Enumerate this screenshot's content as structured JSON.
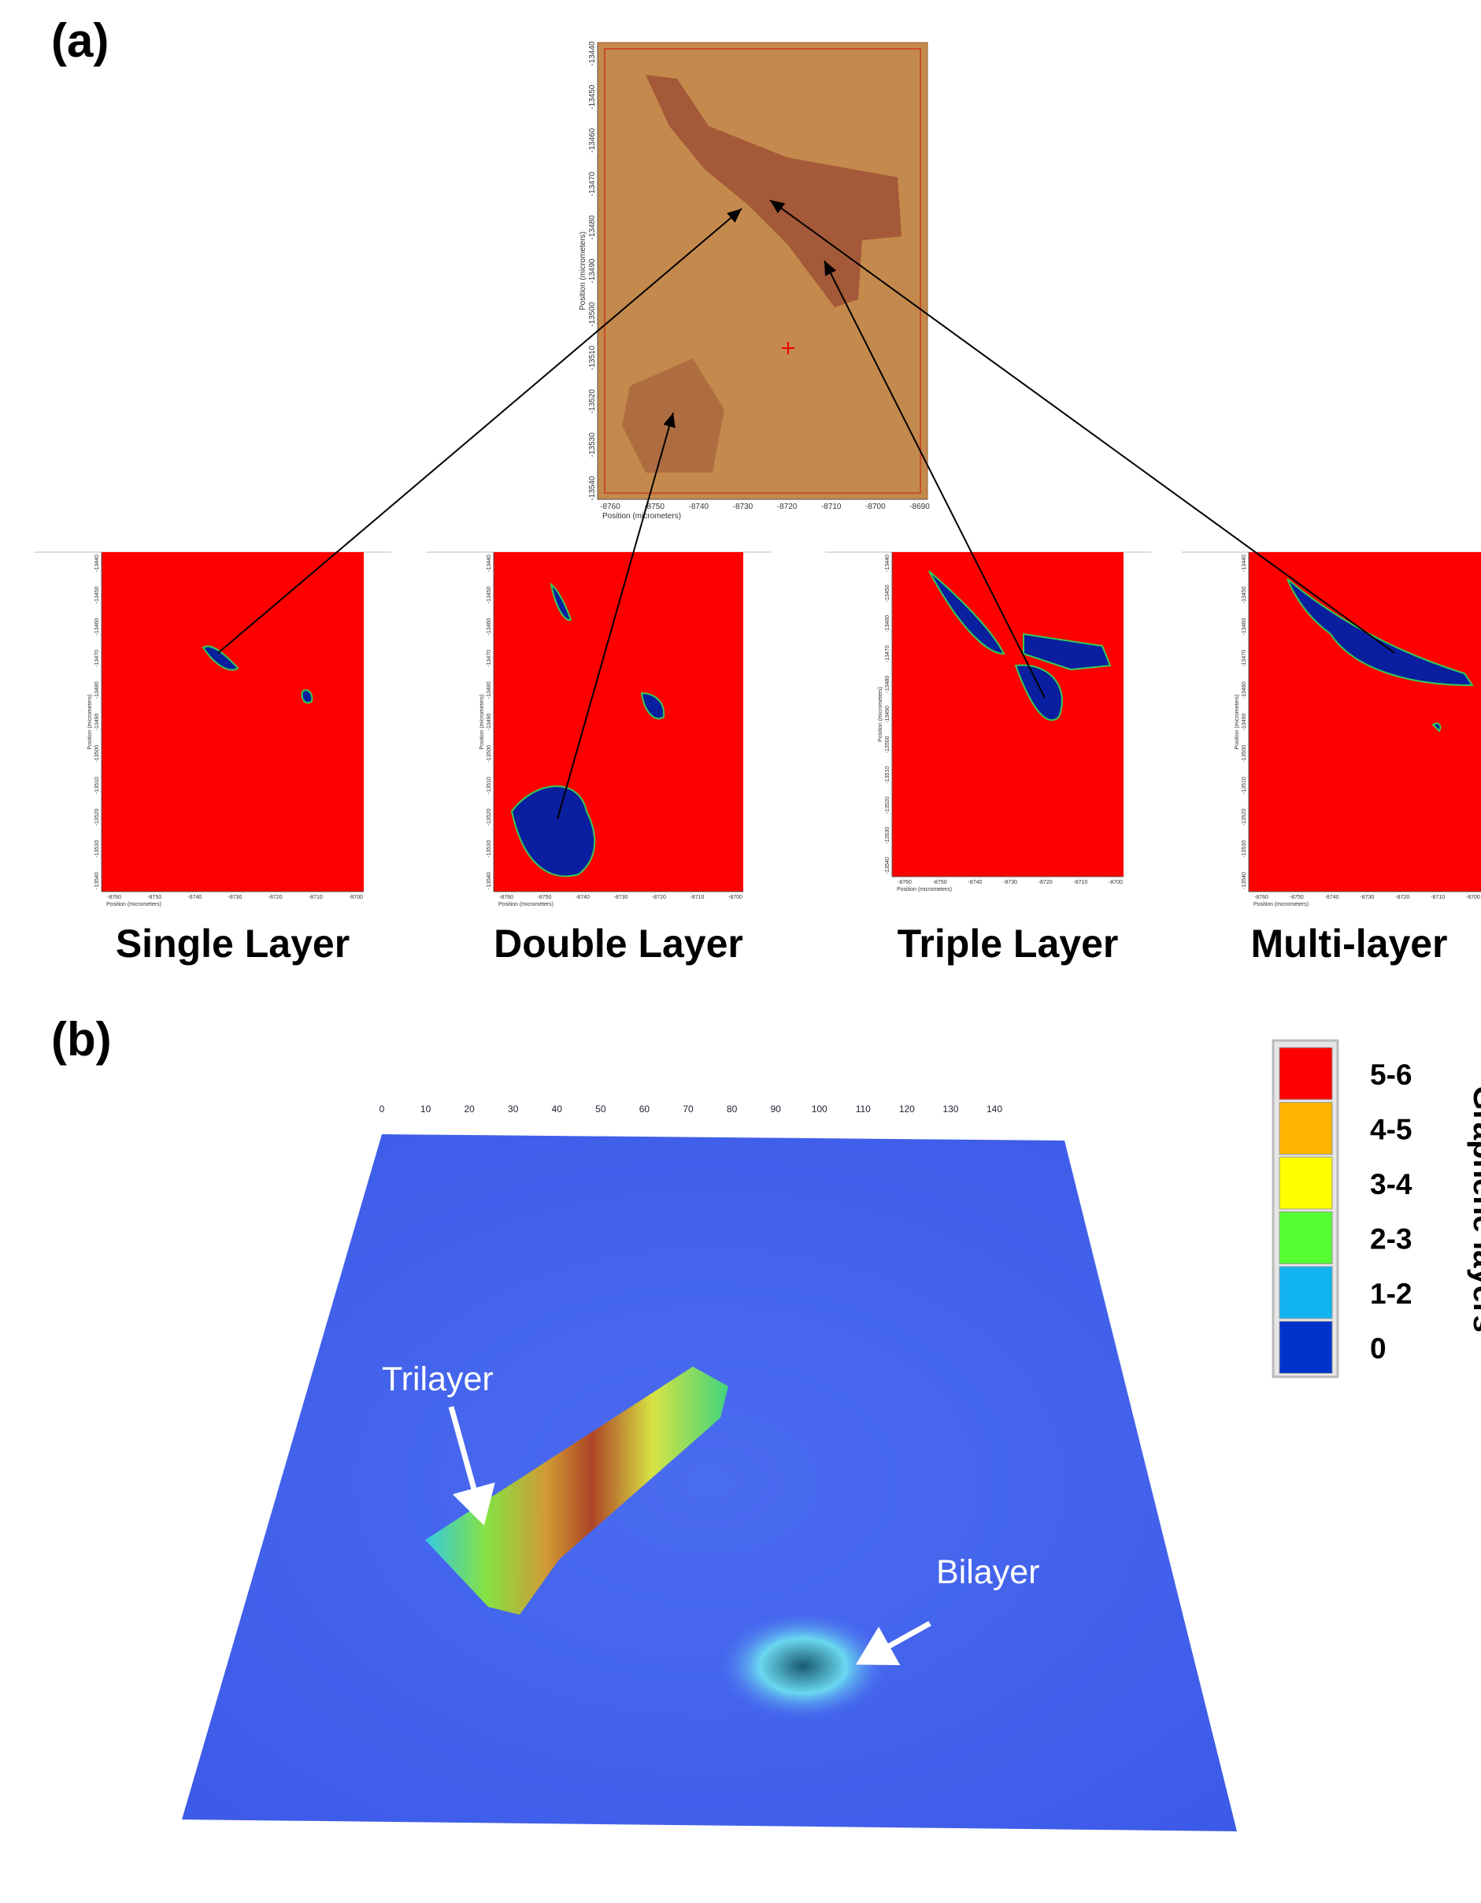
{
  "panel_a": {
    "label": "(a)",
    "micrograph": {
      "x_ticks": [
        "-8760",
        "-8750",
        "-8740",
        "-8730",
        "-8720",
        "-8710",
        "-8700",
        "-8690"
      ],
      "y_ticks": [
        "-13440",
        "-13450",
        "-13460",
        "-13470",
        "-13480",
        "-13490",
        "-13500",
        "-13510",
        "-13520",
        "-13530",
        "-13540"
      ],
      "axis_label": "Position (micrometers)"
    },
    "maps": [
      {
        "label": "Single Layer"
      },
      {
        "label": "Double Layer"
      },
      {
        "label": "Triple Layer"
      },
      {
        "label": "Multi-layer"
      }
    ]
  },
  "panel_b": {
    "label": "(b)",
    "axis_ticks": [
      "0",
      "10",
      "20",
      "30",
      "40",
      "50",
      "60",
      "70",
      "80",
      "90",
      "100",
      "110",
      "120",
      "130",
      "140"
    ],
    "annotations": [
      "Trilayer",
      "Bilayer"
    ],
    "legend": {
      "title": "Graphene layers",
      "entries": [
        {
          "label": "5-6",
          "color": "#ff0000"
        },
        {
          "label": "4-5",
          "color": "#ffb400"
        },
        {
          "label": "3-4",
          "color": "#ffff00"
        },
        {
          "label": "2-3",
          "color": "#55ff33"
        },
        {
          "label": "1-2",
          "color": "#11b4f0"
        },
        {
          "label": "0",
          "color": "#0033cc"
        }
      ]
    }
  }
}
